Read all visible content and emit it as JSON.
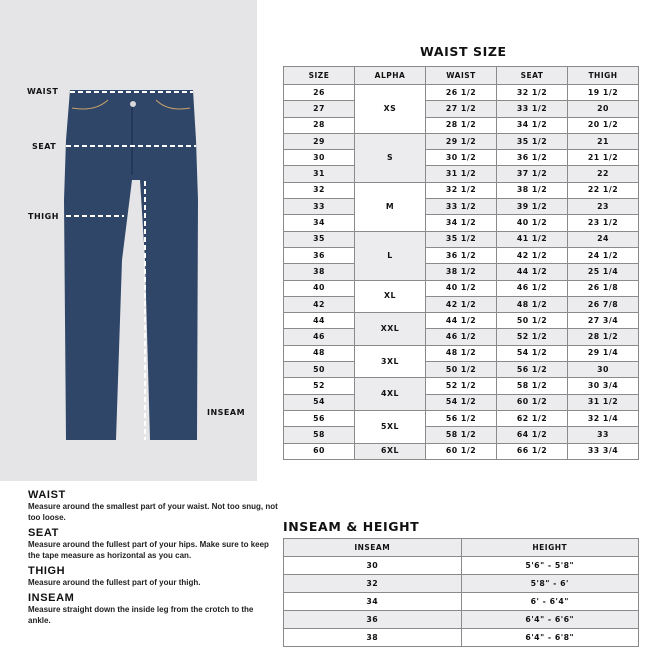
{
  "figure": {
    "labels": {
      "waist": "WAIST",
      "seat": "SEAT",
      "thigh": "THIGH",
      "inseam": "INSEAM"
    },
    "jeans_color": "#2f4668"
  },
  "waist_size": {
    "title": "WAIST SIZE",
    "headers": [
      "SIZE",
      "ALPHA",
      "WAIST",
      "SEAT",
      "THIGH"
    ],
    "groups": [
      {
        "alpha": "XS",
        "rows": [
          [
            "26",
            "26 1/2",
            "32 1/2",
            "19 1/2"
          ],
          [
            "27",
            "27 1/2",
            "33 1/2",
            "20"
          ],
          [
            "28",
            "28 1/2",
            "34 1/2",
            "20 1/2"
          ]
        ]
      },
      {
        "alpha": "S",
        "rows": [
          [
            "29",
            "29 1/2",
            "35 1/2",
            "21"
          ],
          [
            "30",
            "30 1/2",
            "36 1/2",
            "21 1/2"
          ],
          [
            "31",
            "31 1/2",
            "37 1/2",
            "22"
          ]
        ]
      },
      {
        "alpha": "M",
        "rows": [
          [
            "32",
            "32 1/2",
            "38 1/2",
            "22 1/2"
          ],
          [
            "33",
            "33 1/2",
            "39 1/2",
            "23"
          ],
          [
            "34",
            "34 1/2",
            "40 1/2",
            "23 1/2"
          ]
        ]
      },
      {
        "alpha": "L",
        "rows": [
          [
            "35",
            "35 1/2",
            "41 1/2",
            "24"
          ],
          [
            "36",
            "36 1/2",
            "42 1/2",
            "24 1/2"
          ],
          [
            "38",
            "38 1/2",
            "44 1/2",
            "25 1/4"
          ]
        ]
      },
      {
        "alpha": "XL",
        "rows": [
          [
            "40",
            "40 1/2",
            "46 1/2",
            "26 1/8"
          ],
          [
            "42",
            "42 1/2",
            "48 1/2",
            "26 7/8"
          ]
        ]
      },
      {
        "alpha": "XXL",
        "rows": [
          [
            "44",
            "44 1/2",
            "50 1/2",
            "27 3/4"
          ],
          [
            "46",
            "46 1/2",
            "52 1/2",
            "28 1/2"
          ]
        ]
      },
      {
        "alpha": "3XL",
        "rows": [
          [
            "48",
            "48 1/2",
            "54 1/2",
            "29 1/4"
          ],
          [
            "50",
            "50 1/2",
            "56 1/2",
            "30"
          ]
        ]
      },
      {
        "alpha": "4XL",
        "rows": [
          [
            "52",
            "52 1/2",
            "58 1/2",
            "30 3/4"
          ],
          [
            "54",
            "54 1/2",
            "60 1/2",
            "31 1/2"
          ]
        ]
      },
      {
        "alpha": "5XL",
        "rows": [
          [
            "56",
            "56 1/2",
            "62 1/2",
            "32 1/4"
          ],
          [
            "58",
            "58 1/2",
            "64 1/2",
            "33"
          ]
        ]
      },
      {
        "alpha": "6XL",
        "rows": [
          [
            "60",
            "60 1/2",
            "66 1/2",
            "33 3/4"
          ]
        ]
      }
    ]
  },
  "inseam_height": {
    "title": "INSEAM & HEIGHT",
    "headers": [
      "INSEAM",
      "HEIGHT"
    ],
    "rows": [
      [
        "30",
        "5'6\" - 5'8\""
      ],
      [
        "32",
        "5'8\" - 6'"
      ],
      [
        "34",
        "6' - 6'4\""
      ],
      [
        "36",
        "6'4\" - 6'6\""
      ],
      [
        "38",
        "6'4\" - 6'8\""
      ]
    ]
  },
  "instructions": [
    {
      "heading": "WAIST",
      "text": "Measure around the smallest part of your waist. Not too snug, not too loose."
    },
    {
      "heading": "SEAT",
      "text": "Measure around the fullest part of your hips. Make sure to keep the tape measure as horizontal as you can."
    },
    {
      "heading": "THIGH",
      "text": "Measure around the fullest part of your thigh."
    },
    {
      "heading": "INSEAM",
      "text": "Measure straight down the inside leg from the crotch to the ankle."
    }
  ]
}
